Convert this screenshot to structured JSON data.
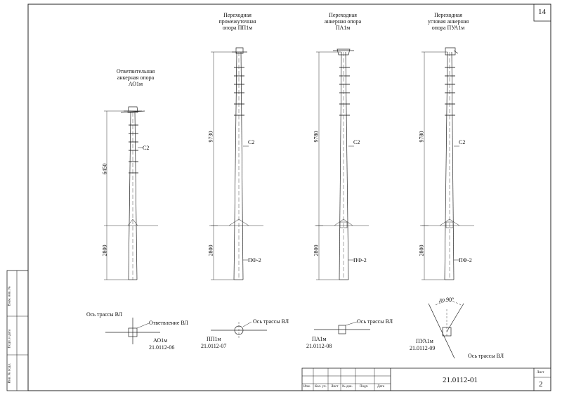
{
  "page_number": "14",
  "sheet_code": "21.0112-01",
  "sheet_label": "Лист",
  "sheet_num": "2",
  "title_block_headers": [
    "Изм.",
    "Кол. уч.",
    "Лист",
    "№ док.",
    "Подп.",
    "Дата"
  ],
  "side_stamp": [
    "Инв. № подл.",
    "Подп. и дата",
    "Взам. инв. №"
  ],
  "poles": [
    {
      "id": "ao1m",
      "title": [
        "Ответвительная",
        "анкерная опора",
        "АО1м"
      ],
      "height_above": "6450",
      "depth": "2800",
      "wire_label": "С2",
      "foundation_label": ""
    },
    {
      "id": "pp1m",
      "title": [
        "Переходная",
        "промежуточная",
        "опора ПП1м"
      ],
      "height_above": "9730",
      "depth": "2800",
      "wire_label": "С2",
      "foundation_label": "ПФ-2"
    },
    {
      "id": "pa1m",
      "title": [
        "Переходная",
        "анкерная опора",
        "ПА1м"
      ],
      "height_above": "9780",
      "depth": "2800",
      "wire_label": "С2",
      "foundation_label": "ПФ-2"
    },
    {
      "id": "pua1m",
      "title": [
        "Переходная",
        "угловая анкерная",
        "опора ПУА1м"
      ],
      "height_above": "9780",
      "depth": "2800",
      "wire_label": "С2",
      "foundation_label": "ПФ-2"
    }
  ],
  "plans": [
    {
      "id": "ao1m",
      "axis": "Ось трассы ВЛ",
      "branch": "Ответвление ВЛ",
      "name": "АО1м",
      "code": "21.0112-06"
    },
    {
      "id": "pp1m",
      "axis": "Ось трассы ВЛ",
      "name": "ПП1м",
      "code": "21.0112-07"
    },
    {
      "id": "pa1m",
      "axis": "Ось трассы ВЛ",
      "name": "ПА1м",
      "code": "21.0112-08"
    },
    {
      "id": "pua1m",
      "axis": "Ось трассы ВЛ",
      "angle": "до 90°",
      "name": "ПУА1м",
      "code": "21.0112-09"
    }
  ]
}
